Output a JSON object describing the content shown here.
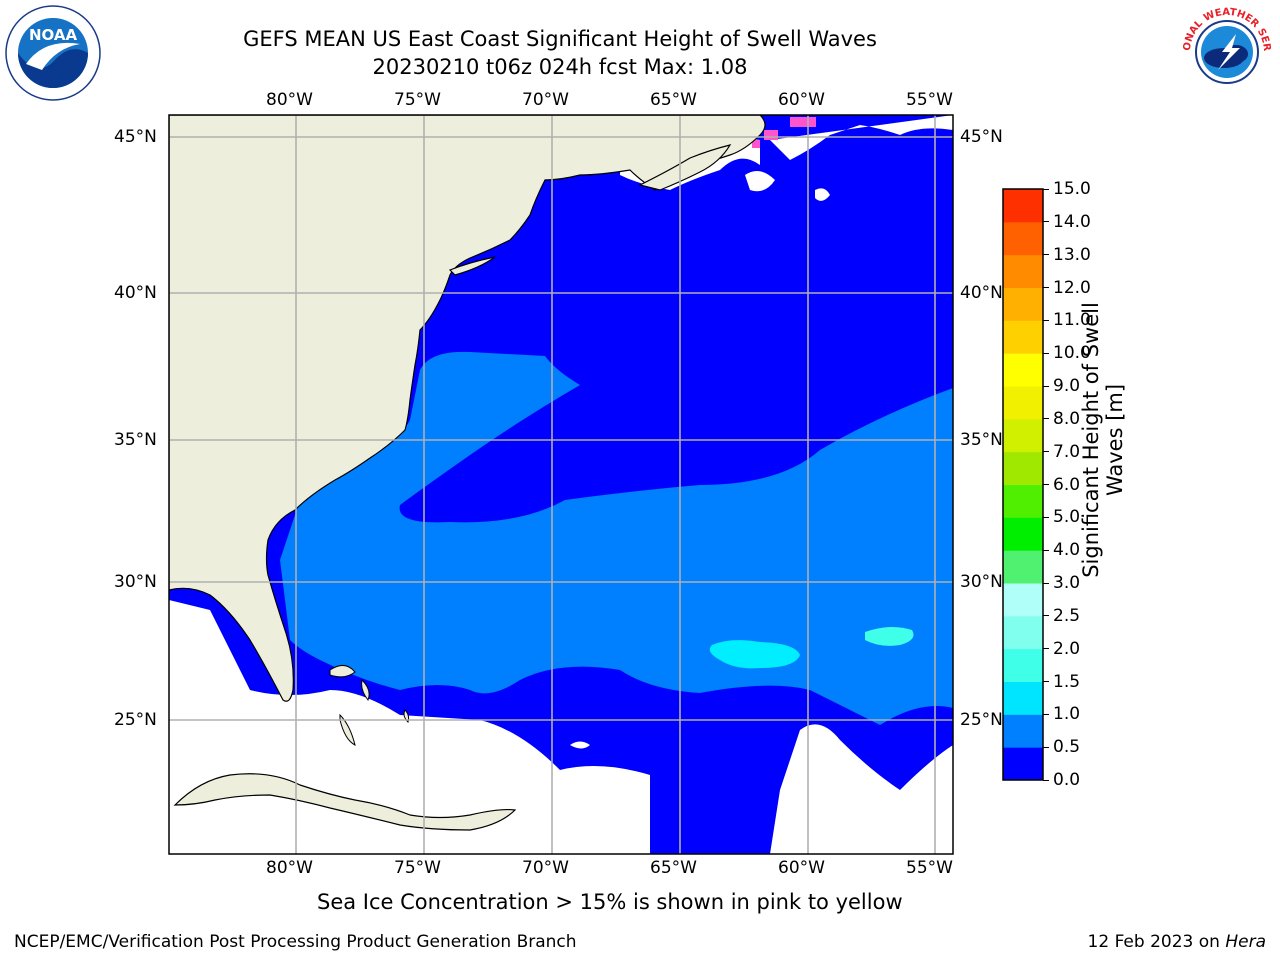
{
  "title": {
    "line1": "GEFS MEAN US East Coast Significant Height of Swell Waves",
    "line2": "20230210 t06z 024h fcst   Max: 1.08"
  },
  "map": {
    "lon_labels": [
      "80°W",
      "75°W",
      "70°W",
      "65°W",
      "60°W",
      "55°W"
    ],
    "lat_labels": [
      "45°N",
      "40°N",
      "35°N",
      "30°N",
      "25°N"
    ],
    "lon_range": [
      -85,
      -54.5
    ],
    "lat_range": [
      20.5,
      45.8
    ],
    "gridlines": true
  },
  "colorbar": {
    "label_line1": "Significant Height of Swell",
    "label_line2": "Waves [m]",
    "ticks": [
      "0.0",
      "0.5",
      "1.0",
      "1.5",
      "2.0",
      "2.5",
      "3.0",
      "4.0",
      "5.0",
      "6.0",
      "7.0",
      "8.0",
      "9.0",
      "10.0",
      "11.0",
      "12.0",
      "13.0",
      "14.0",
      "15.0"
    ],
    "colors": [
      "#0000ff",
      "#0080ff",
      "#00e5ff",
      "#40ffe8",
      "#80ffee",
      "#b0fff8",
      "#50f070",
      "#00ee00",
      "#50ee00",
      "#a0e800",
      "#d0f000",
      "#f0f000",
      "#ffff00",
      "#ffd000",
      "#ffb000",
      "#ff8c00",
      "#ff6000",
      "#ff3000",
      "#ff0000"
    ]
  },
  "legend_colors": {
    "land": "#eeeedc",
    "ocean_low": "#0000ff",
    "ocean_mid": "#0080ff",
    "ocean_high": "#00eeff",
    "sea_ice": "#ff66cc"
  },
  "note": "Sea Ice Concentration > 15% is shown in pink to yellow",
  "footer": {
    "left": "NCEP/EMC/Verification Post Processing Product Generation Branch",
    "right_date": "12 Feb 2023 on ",
    "right_machine": "Hera"
  },
  "logos": {
    "noaa": "NOAA",
    "nws": "NATIONAL WEATHER SERVICE"
  }
}
